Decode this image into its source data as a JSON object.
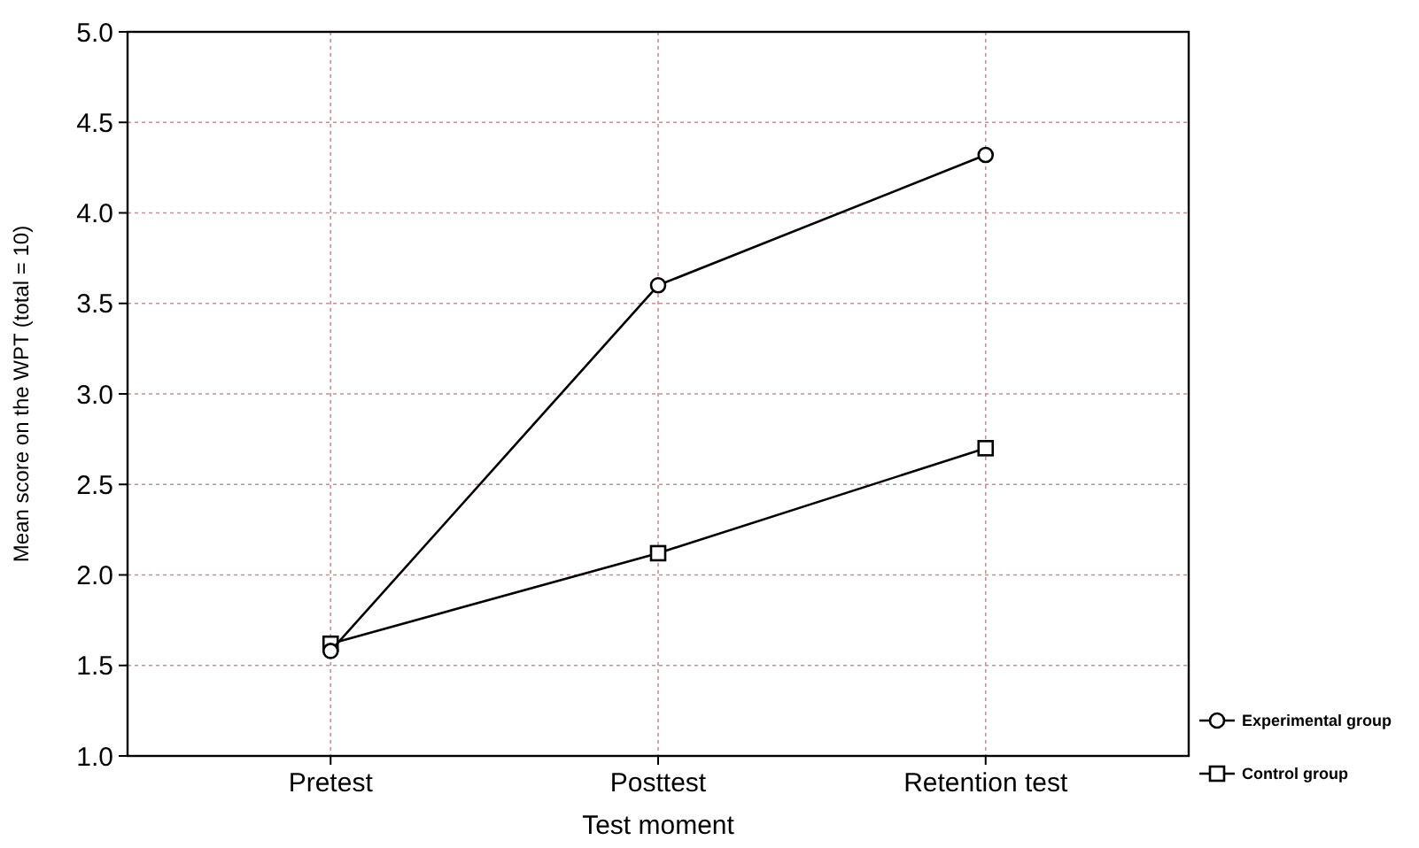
{
  "chart_data": {
    "type": "line",
    "xlabel": "Test moment",
    "ylabel": "Mean score on the WPT (total = 10)",
    "categories": [
      "Pretest",
      "Posttest",
      "Retention test"
    ],
    "series": [
      {
        "name": "Experimental group",
        "color": "#000000",
        "values": [
          1.58,
          3.6,
          4.32
        ],
        "marker": "circle"
      },
      {
        "name": "Control group",
        "color": "#000000",
        "values": [
          1.62,
          2.12,
          2.7
        ],
        "marker": "square"
      }
    ],
    "ylim": [
      1.0,
      5.0
    ],
    "yticks": [
      {
        "value": 1,
        "label": "1.0"
      },
      {
        "value": 1.5,
        "label": "1.5"
      },
      {
        "value": 2,
        "label": "2.0"
      },
      {
        "value": 2.5,
        "label": "2.5"
      },
      {
        "value": 3,
        "label": "3.0"
      },
      {
        "value": 3.5,
        "label": "3.5"
      },
      {
        "value": 4,
        "label": "4.0"
      },
      {
        "value": 4.5,
        "label": "4.5"
      },
      {
        "value": 5,
        "label": "5.0"
      }
    ],
    "grid": true,
    "legend": "bottom right",
    "line_style": "solid"
  }
}
